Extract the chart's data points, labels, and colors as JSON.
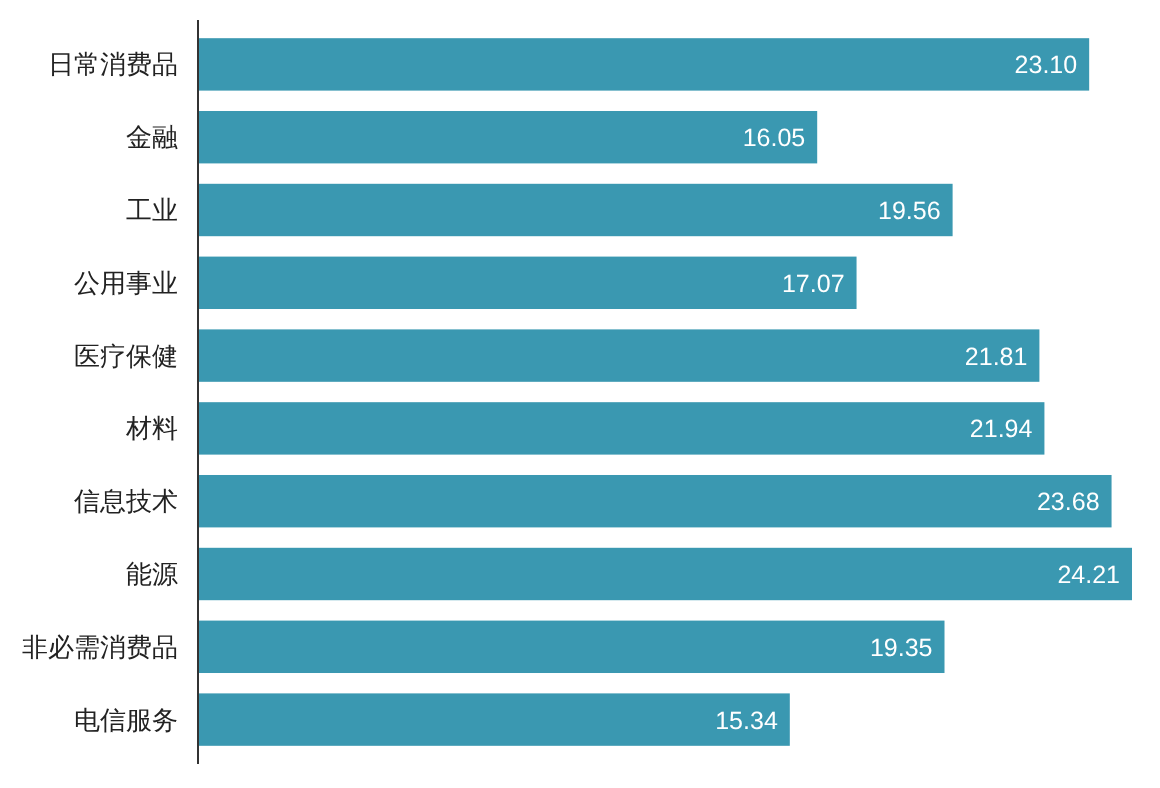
{
  "chart_data": {
    "type": "bar",
    "orientation": "horizontal",
    "categories": [
      "日常消费品",
      "金融",
      "工业",
      "公用事业",
      "医疗保健",
      "材料",
      "信息技术",
      "能源",
      "非必需消费品",
      "电信服务"
    ],
    "values": [
      23.1,
      16.05,
      19.56,
      17.07,
      21.81,
      21.94,
      23.68,
      24.21,
      19.35,
      15.34
    ],
    "value_labels": [
      "23.10",
      "16.05",
      "19.56",
      "17.07",
      "21.81",
      "21.94",
      "23.68",
      "24.21",
      "19.35",
      "15.34"
    ],
    "color": "#3a98b1"
  }
}
